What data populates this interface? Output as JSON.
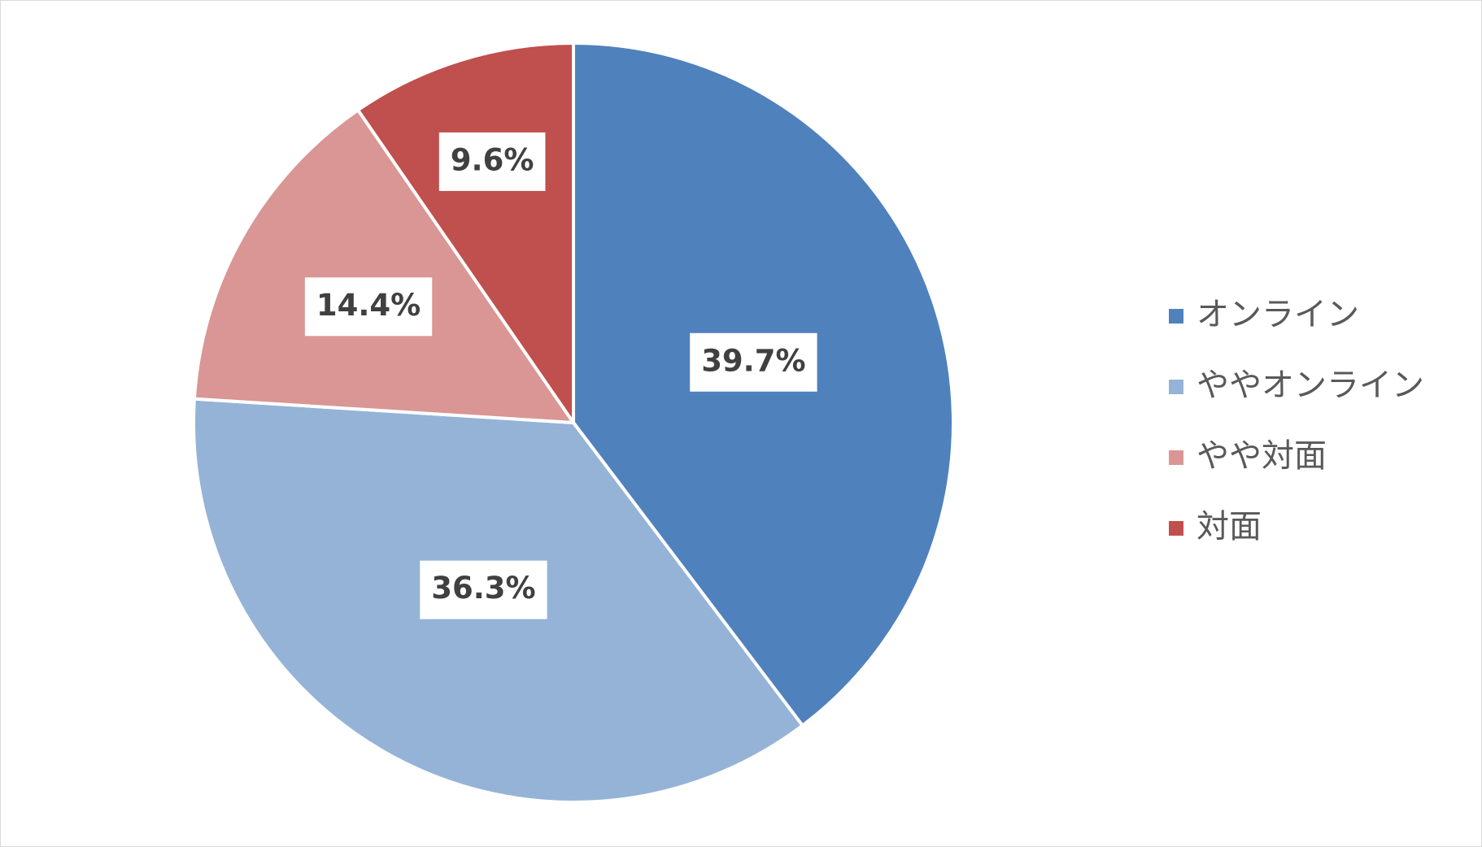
{
  "chart_data": {
    "type": "pie",
    "categories": [
      "オンライン",
      "ややオンライン",
      "やや対面",
      "対面"
    ],
    "values": [
      39.7,
      36.3,
      14.4,
      9.6
    ],
    "value_labels": [
      "39.7%",
      "36.3%",
      "14.4%",
      "9.6%"
    ],
    "colors": [
      "#4f81bd",
      "#95b3d7",
      "#d99694",
      "#c0504d"
    ],
    "legend": "right"
  }
}
